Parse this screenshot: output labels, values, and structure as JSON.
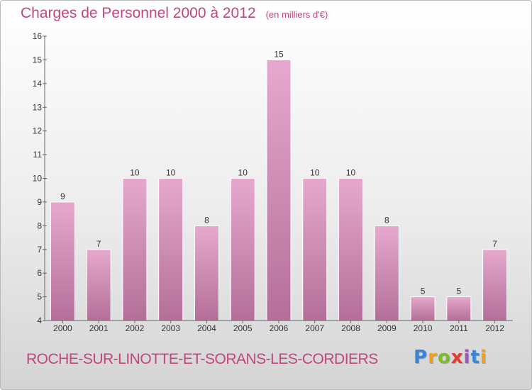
{
  "header": {
    "title": "Charges de Personnel 2000 à 2012",
    "subtitle": "(en milliers d'€)"
  },
  "footer": {
    "location": "ROCHE-SUR-LINOTTE-ET-SORANS-LES-CORDIERS",
    "brand": "Proxiti"
  },
  "colors": {
    "title": "#c2467e",
    "bar_top": "#e6a9cd",
    "bar_bottom": "#b46f98"
  },
  "chart_data": {
    "type": "bar",
    "title": "Charges de Personnel 2000 à 2012",
    "subtitle": "(en milliers d'€)",
    "xlabel": "",
    "ylabel": "",
    "categories": [
      "2000",
      "2001",
      "2002",
      "2003",
      "2004",
      "2005",
      "2006",
      "2007",
      "2008",
      "2009",
      "2010",
      "2011",
      "2012"
    ],
    "values": [
      9,
      7,
      10,
      10,
      8,
      10,
      15,
      10,
      10,
      8,
      5,
      5,
      7
    ],
    "data_labels": [
      "9",
      "7",
      "10",
      "10",
      "8",
      "10",
      "15",
      "10",
      "10",
      "8",
      "5",
      "5",
      "7"
    ],
    "ylim": [
      4,
      16
    ],
    "yticks": [
      4,
      5,
      6,
      7,
      8,
      9,
      10,
      11,
      12,
      13,
      14,
      15,
      16
    ],
    "ytick_labels": [
      "4",
      "5",
      "6",
      "7",
      "8",
      "9",
      "10",
      "11",
      "12",
      "13",
      "14",
      "15",
      "16"
    ],
    "grid": false,
    "legend": "none"
  }
}
